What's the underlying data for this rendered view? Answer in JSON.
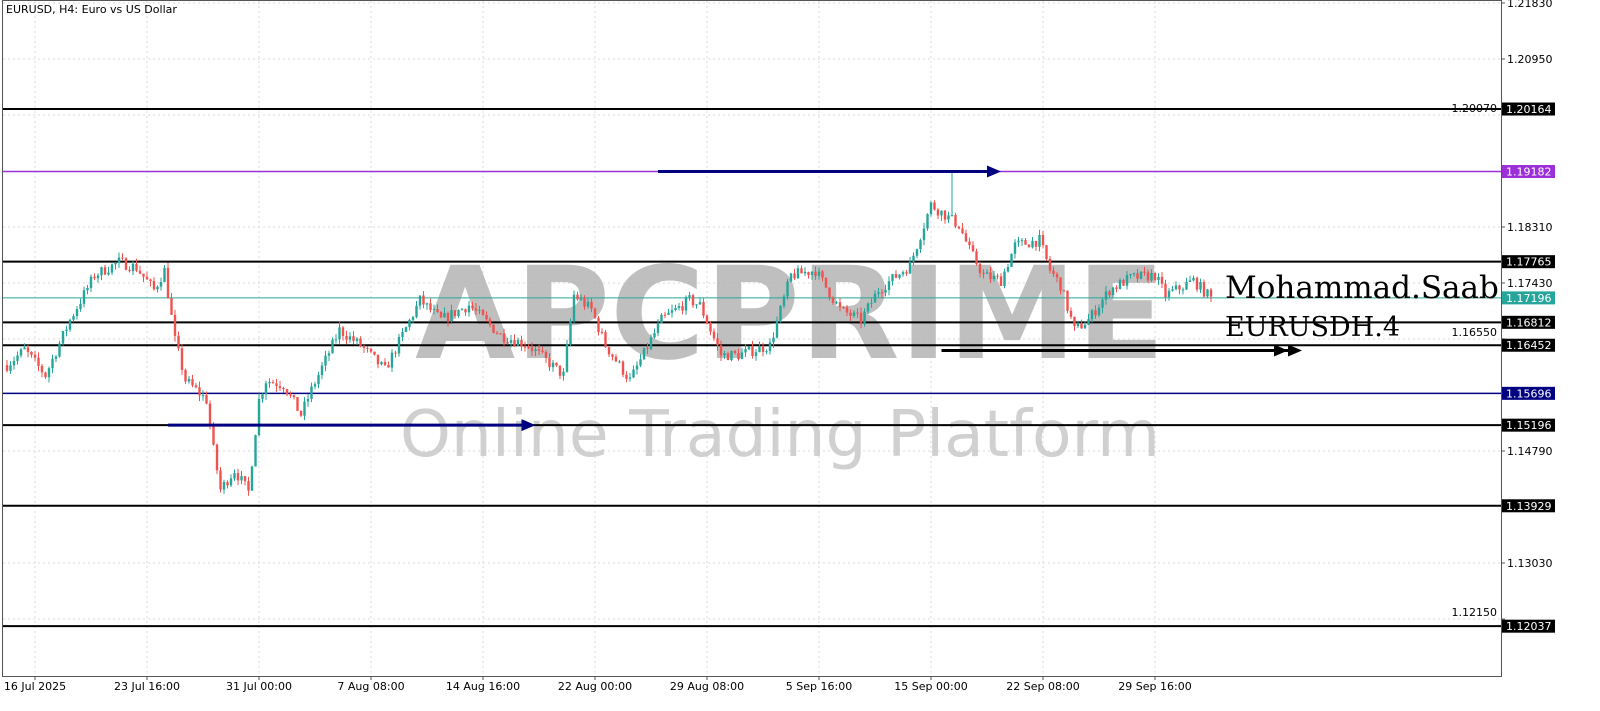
{
  "header": {
    "title": "EURUSD, H4:  Euro vs US Dollar"
  },
  "watermark": {
    "brand": "APCPRIME",
    "tagline": "Online Trading Platform"
  },
  "signature": {
    "author": "Mohammad.Saab",
    "symbol": "EURUSDH.4"
  },
  "colors": {
    "bull": "#26a69a",
    "bear": "#ef5350",
    "current_price": "#26a69a",
    "purple_level": "#9b30d9",
    "navy_level": "#000080",
    "level": "#000000",
    "arrow_navy": "#000080",
    "arrow_black": "#000000"
  },
  "chart_data": {
    "type": "candlestick",
    "symbol": "EURUSD",
    "timeframe": "H4",
    "ylim": [
      1.114,
      1.2183
    ],
    "y_ticks": [
      "1.21830",
      "1.20950",
      "1.20070",
      "1.18310",
      "1.17430",
      "1.16550",
      "1.14790",
      "1.13030",
      "1.12150"
    ],
    "x_ticks": [
      {
        "bar": 8,
        "label": "16 Jul 2025"
      },
      {
        "bar": 40,
        "label": "23 Jul 16:00"
      },
      {
        "bar": 72,
        "label": "31 Jul 00:00"
      },
      {
        "bar": 104,
        "label": "7 Aug 08:00"
      },
      {
        "bar": 136,
        "label": "14 Aug 16:00"
      },
      {
        "bar": 168,
        "label": "22 Aug 00:00"
      },
      {
        "bar": 200,
        "label": "29 Aug 08:00"
      },
      {
        "bar": 232,
        "label": "5 Sep 16:00"
      },
      {
        "bar": 264,
        "label": "15 Sep 00:00"
      },
      {
        "bar": 296,
        "label": "22 Sep 08:00"
      },
      {
        "bar": 328,
        "label": "29 Sep 16:00"
      }
    ],
    "price_path": [
      [
        0,
        1.1614
      ],
      [
        5,
        1.1638
      ],
      [
        11,
        1.1598
      ],
      [
        18,
        1.1685
      ],
      [
        25,
        1.1755
      ],
      [
        32,
        1.1776
      ],
      [
        37,
        1.1767
      ],
      [
        42,
        1.1732
      ],
      [
        45,
        1.1763
      ],
      [
        48,
        1.1653
      ],
      [
        51,
        1.159
      ],
      [
        54,
        1.1575
      ],
      [
        57,
        1.1559
      ],
      [
        59,
        1.1481
      ],
      [
        61,
        1.1418
      ],
      [
        65,
        1.1449
      ],
      [
        69,
        1.1415
      ],
      [
        72,
        1.1559
      ],
      [
        74,
        1.159
      ],
      [
        79,
        1.1583
      ],
      [
        84,
        1.1536
      ],
      [
        87,
        1.1575
      ],
      [
        95,
        1.1669
      ],
      [
        101,
        1.1645
      ],
      [
        108,
        1.1606
      ],
      [
        118,
        1.1716
      ],
      [
        124,
        1.1685
      ],
      [
        132,
        1.1708
      ],
      [
        141,
        1.1661
      ],
      [
        149,
        1.1645
      ],
      [
        159,
        1.1598
      ],
      [
        162,
        1.1724
      ],
      [
        167,
        1.1701
      ],
      [
        171,
        1.1645
      ],
      [
        178,
        1.159
      ],
      [
        187,
        1.1685
      ],
      [
        195,
        1.1716
      ],
      [
        198,
        1.1708
      ],
      [
        204,
        1.163
      ],
      [
        209,
        1.163
      ],
      [
        218,
        1.1645
      ],
      [
        224,
        1.1755
      ],
      [
        231,
        1.1763
      ],
      [
        238,
        1.1701
      ],
      [
        244,
        1.1685
      ],
      [
        249,
        1.1732
      ],
      [
        258,
        1.1771
      ],
      [
        264,
        1.1866
      ],
      [
        268,
        1.185
      ],
      [
        272,
        1.1834
      ],
      [
        275,
        1.1795
      ],
      [
        279,
        1.1755
      ],
      [
        284,
        1.1747
      ],
      [
        288,
        1.1802
      ],
      [
        295,
        1.181
      ],
      [
        298,
        1.1763
      ],
      [
        301,
        1.174
      ],
      [
        305,
        1.1669
      ],
      [
        309,
        1.1685
      ],
      [
        315,
        1.1732
      ],
      [
        321,
        1.1751
      ],
      [
        328,
        1.1755
      ],
      [
        331,
        1.1724
      ],
      [
        335,
        1.1735
      ],
      [
        339,
        1.1747
      ],
      [
        344,
        1.1719
      ]
    ],
    "notable_high": {
      "bar": 270,
      "price": 1.1918
    },
    "current_price": {
      "value": 1.17196,
      "label": "1.17196"
    },
    "levels": [
      {
        "value": 1.20164,
        "label": "1.20164",
        "color": "#000000"
      },
      {
        "value": 1.19182,
        "label": "1.19182",
        "color": "#9b30d9"
      },
      {
        "value": 1.17765,
        "label": "1.17765",
        "color": "#000000"
      },
      {
        "value": 1.16812,
        "label": "1.16812",
        "color": "#000000"
      },
      {
        "value": 1.16452,
        "label": "1.16452",
        "color": "#000000"
      },
      {
        "value": 1.15696,
        "label": "1.15696",
        "color": "#000080"
      },
      {
        "value": 1.15196,
        "label": "1.15196",
        "color": "#000000"
      },
      {
        "value": 1.13929,
        "label": "1.13929",
        "color": "#000000"
      },
      {
        "value": 1.12037,
        "label": "1.12037",
        "color": "#000000"
      }
    ],
    "arrows": [
      {
        "from_bar": 186,
        "to_bar": 284,
        "price": 1.19182,
        "color": "#000080"
      },
      {
        "from_bar": 46,
        "to_bar": 151,
        "price": 1.15196,
        "color": "#000080"
      },
      {
        "from_bar": 267,
        "to_bar": 370,
        "price": 1.1637,
        "color": "#000000"
      }
    ]
  }
}
